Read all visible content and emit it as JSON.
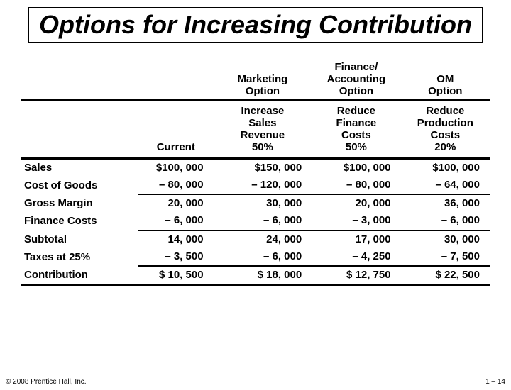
{
  "title": "Options for Increasing Contribution",
  "columns": {
    "current": "Current",
    "marketing_header": "Marketing Option",
    "finance_header": "Finance/ Accounting Option",
    "om_header": "OM Option",
    "marketing_sub": "Increase Sales Revenue 50%",
    "finance_sub": "Reduce Finance Costs 50%",
    "om_sub": "Reduce Production Costs 20%"
  },
  "rows": [
    {
      "label": "Sales",
      "current": "$100, 000",
      "marketing": "$150, 000",
      "finance": "$100, 000",
      "om": "$100, 000",
      "u": false
    },
    {
      "label": "Cost of Goods",
      "current": "– 80, 000",
      "marketing": "– 120, 000",
      "finance": "– 80, 000",
      "om": "– 64, 000",
      "u": true
    },
    {
      "label": "Gross Margin",
      "current": "20, 000",
      "marketing": "30, 000",
      "finance": "20, 000",
      "om": "36, 000",
      "u": false
    },
    {
      "label": "Finance Costs",
      "current": "– 6, 000",
      "marketing": "– 6, 000",
      "finance": "– 3, 000",
      "om": "– 6, 000",
      "u": true
    },
    {
      "label": "Subtotal",
      "current": "14, 000",
      "marketing": "24, 000",
      "finance": "17, 000",
      "om": "30, 000",
      "u": false
    },
    {
      "label": "Taxes at 25%",
      "current": "– 3, 500",
      "marketing": "– 6, 000",
      "finance": "– 4, 250",
      "om": "– 7, 500",
      "u": true
    },
    {
      "label": "Contribution",
      "current": "$ 10, 500",
      "marketing": "$ 18, 000",
      "finance": "$ 12, 750",
      "om": "$ 22, 500",
      "u": false
    }
  ],
  "footer": {
    "copyright": "© 2008 Prentice Hall, Inc.",
    "page": "1 – 14"
  }
}
